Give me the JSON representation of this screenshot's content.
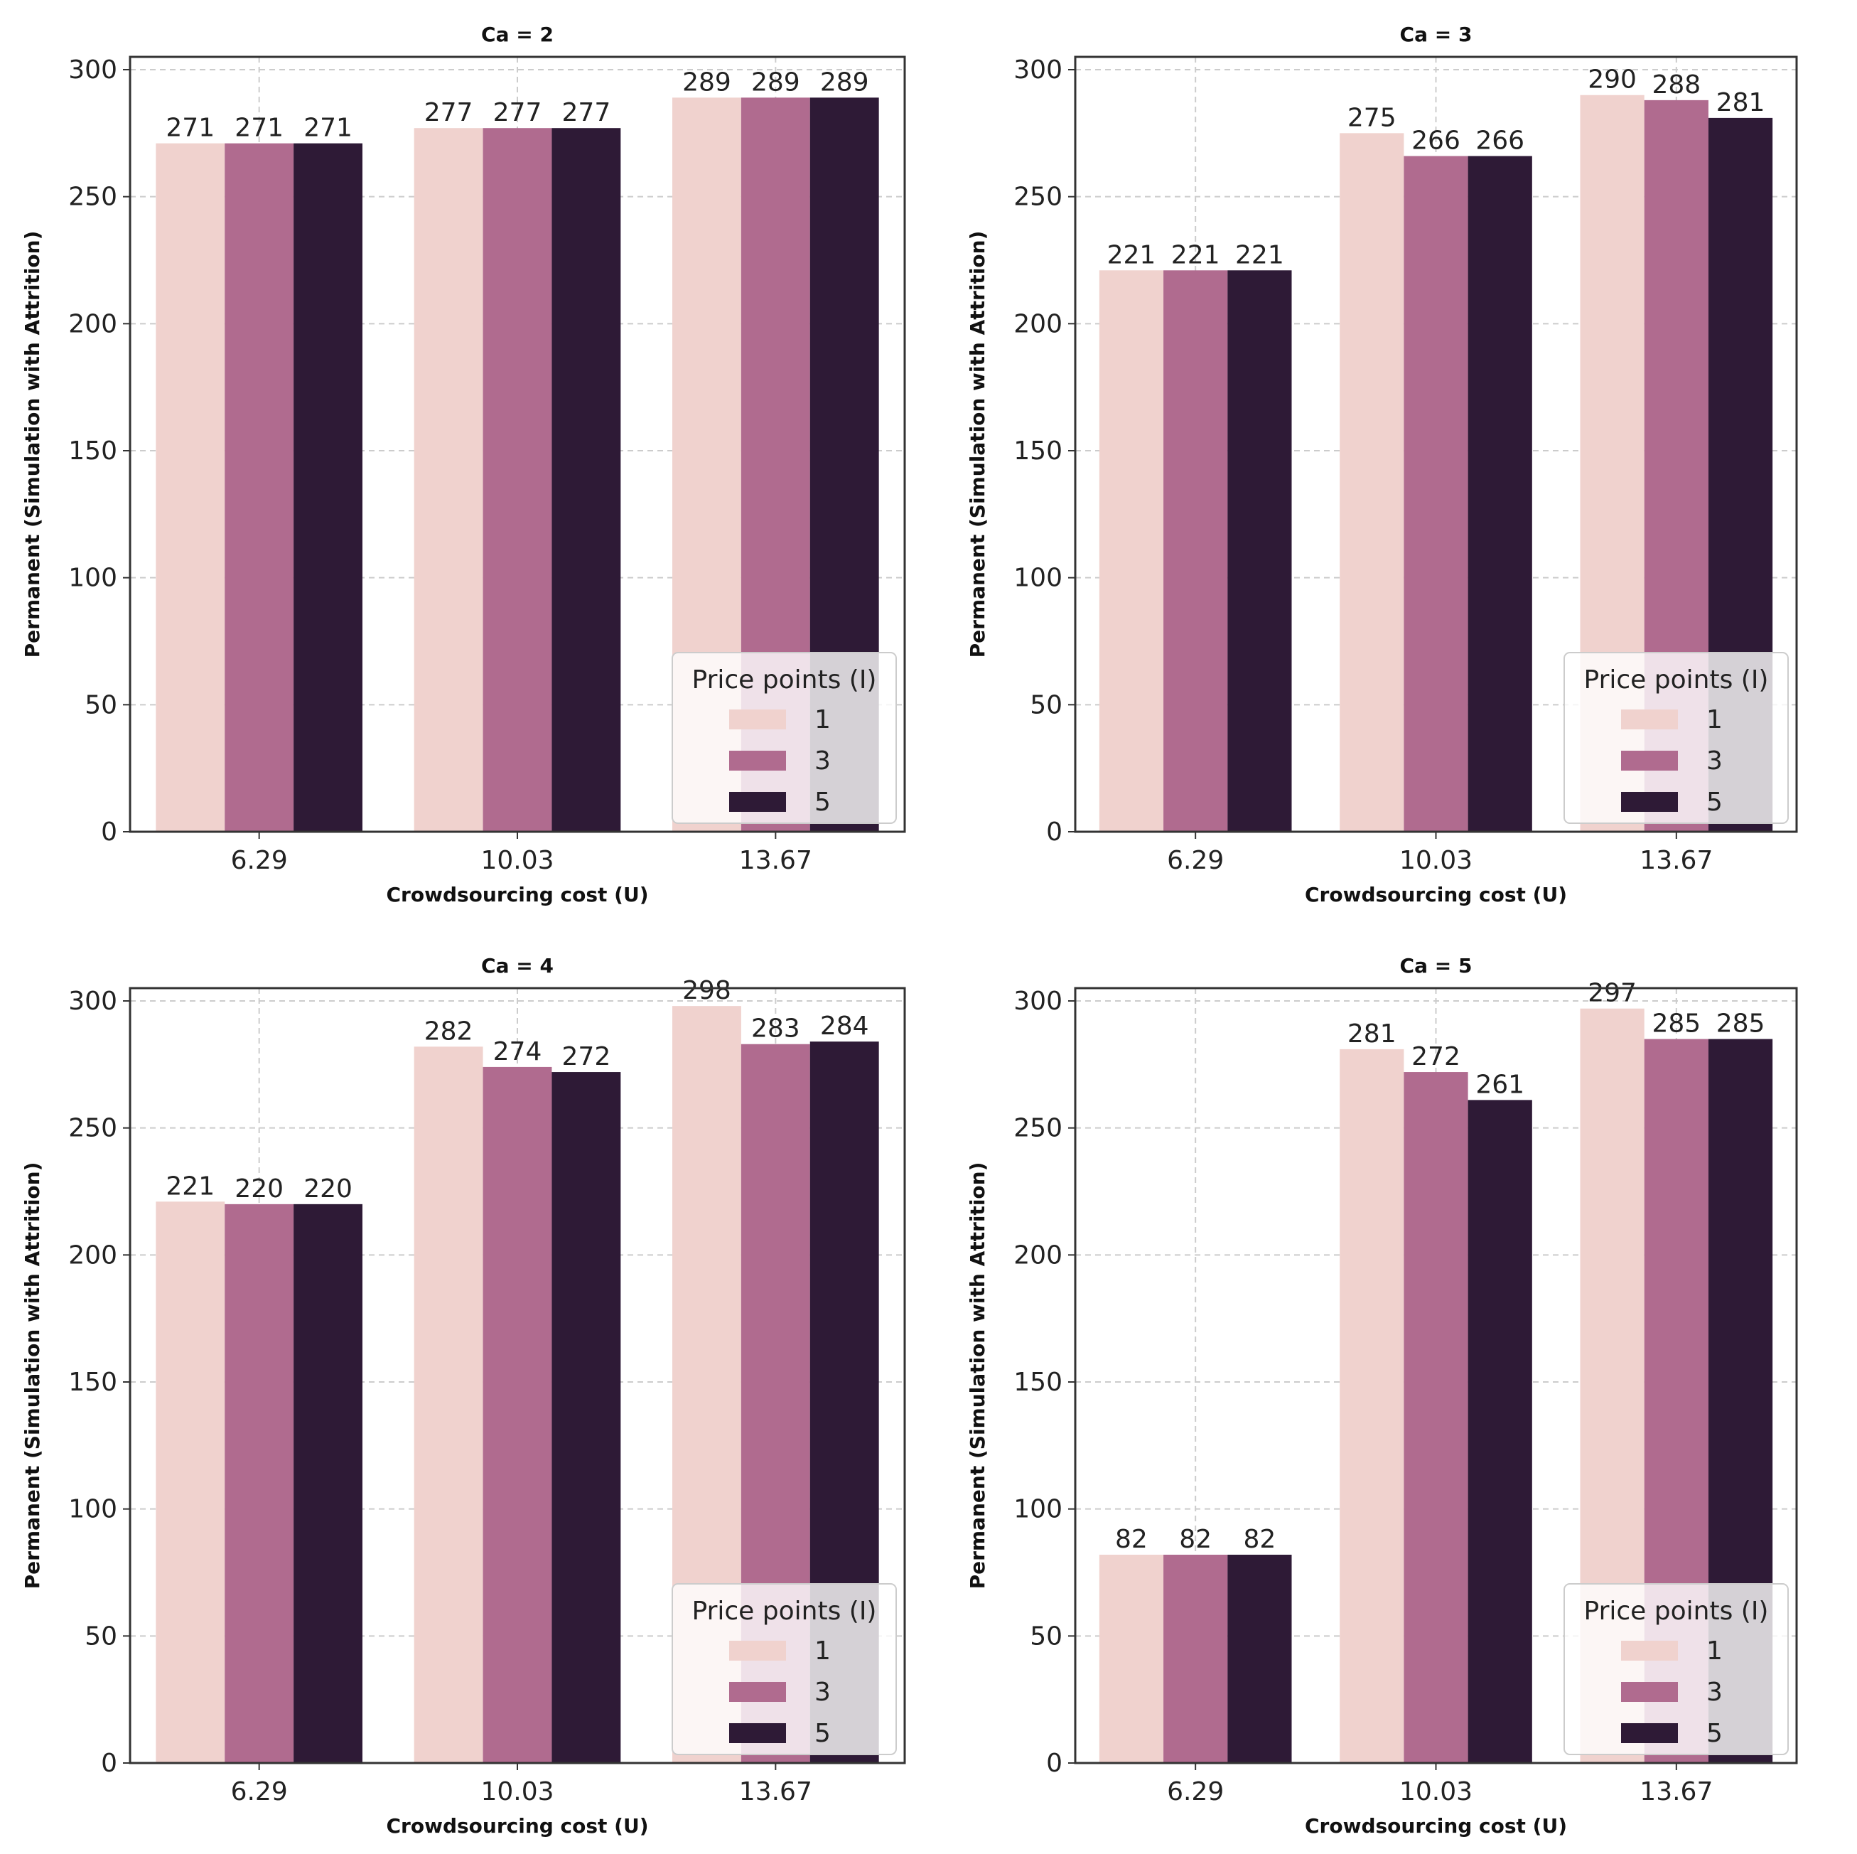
{
  "chart_data": [
    {
      "type": "bar",
      "title": "Ca = 2",
      "xlabel": "Crowdsourcing cost (U)",
      "ylabel": "Permanent (Simulation with Attrition)",
      "categories": [
        "6.29",
        "10.03",
        "13.67"
      ],
      "series": [
        {
          "name": "1",
          "values": [
            271,
            277,
            289
          ]
        },
        {
          "name": "3",
          "values": [
            271,
            277,
            289
          ]
        },
        {
          "name": "5",
          "values": [
            271,
            277,
            289
          ]
        }
      ],
      "ylim": [
        0,
        300
      ],
      "yticks": [
        "0",
        "50",
        "100",
        "150",
        "200",
        "250",
        "300"
      ],
      "legend_title": "Price points (I)",
      "legend_position": "lower-right",
      "grid": true
    },
    {
      "type": "bar",
      "title": "Ca = 3",
      "xlabel": "Crowdsourcing cost (U)",
      "ylabel": "Permanent (Simulation with Attrition)",
      "categories": [
        "6.29",
        "10.03",
        "13.67"
      ],
      "series": [
        {
          "name": "1",
          "values": [
            221,
            275,
            290
          ]
        },
        {
          "name": "3",
          "values": [
            221,
            266,
            288
          ]
        },
        {
          "name": "5",
          "values": [
            221,
            266,
            281
          ]
        }
      ],
      "ylim": [
        0,
        300
      ],
      "yticks": [
        "0",
        "50",
        "100",
        "150",
        "200",
        "250",
        "300"
      ],
      "legend_title": "Price points (I)",
      "legend_position": "lower-right",
      "grid": true
    },
    {
      "type": "bar",
      "title": "Ca = 4",
      "xlabel": "Crowdsourcing cost (U)",
      "ylabel": "Permanent (Simulation with Attrition)",
      "categories": [
        "6.29",
        "10.03",
        "13.67"
      ],
      "series": [
        {
          "name": "1",
          "values": [
            221,
            282,
            298
          ]
        },
        {
          "name": "3",
          "values": [
            220,
            274,
            283
          ]
        },
        {
          "name": "5",
          "values": [
            220,
            272,
            284
          ]
        }
      ],
      "ylim": [
        0,
        300
      ],
      "yticks": [
        "0",
        "50",
        "100",
        "150",
        "200",
        "250",
        "300"
      ],
      "legend_title": "Price points (I)",
      "legend_position": "lower-right",
      "grid": true
    },
    {
      "type": "bar",
      "title": "Ca = 5",
      "xlabel": "Crowdsourcing cost (U)",
      "ylabel": "Permanent (Simulation with Attrition)",
      "categories": [
        "6.29",
        "10.03",
        "13.67"
      ],
      "series": [
        {
          "name": "1",
          "values": [
            82,
            281,
            297
          ]
        },
        {
          "name": "3",
          "values": [
            82,
            272,
            285
          ]
        },
        {
          "name": "5",
          "values": [
            82,
            261,
            285
          ]
        }
      ],
      "ylim": [
        0,
        300
      ],
      "yticks": [
        "0",
        "50",
        "100",
        "150",
        "200",
        "250",
        "300"
      ],
      "legend_title": "Price points (I)",
      "legend_position": "lower-right",
      "grid": true
    }
  ],
  "colors": {
    "series": [
      "#f0d2ce",
      "#b06b8f",
      "#2e1a36"
    ],
    "grid": "#cccccc",
    "axes": "#333333"
  }
}
